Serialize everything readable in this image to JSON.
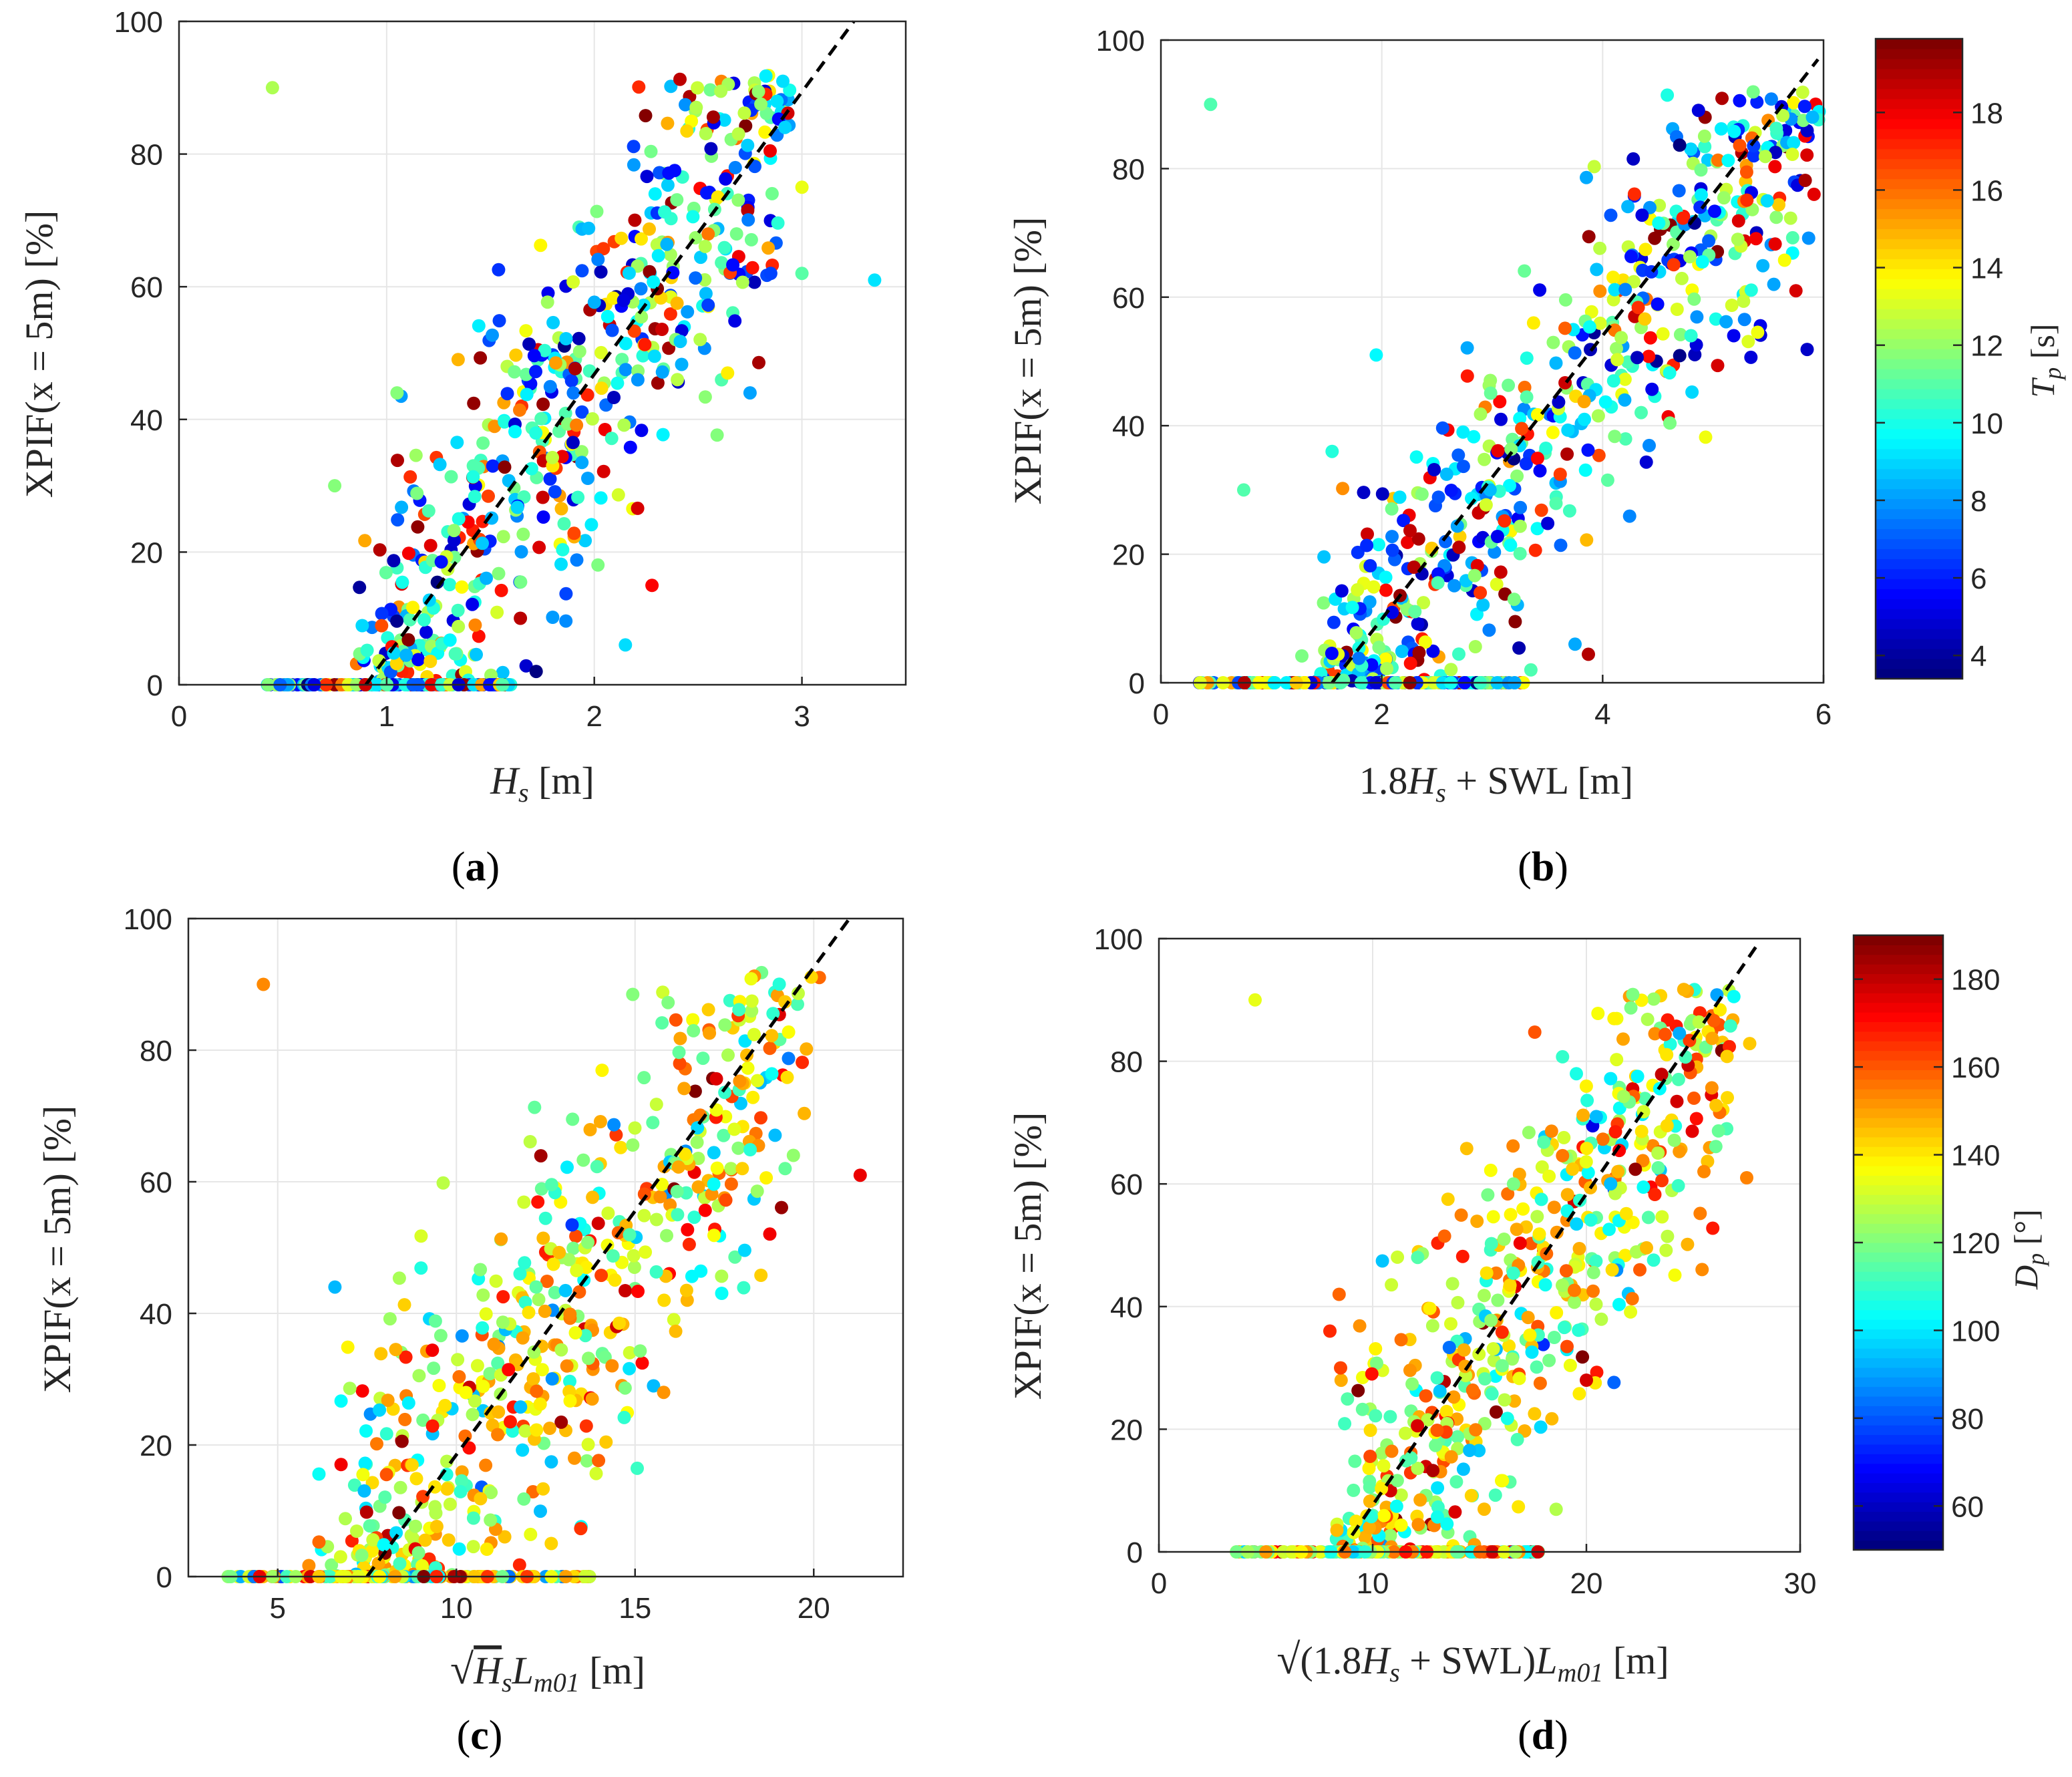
{
  "chart_data": [
    {
      "id": "a",
      "type": "scatter",
      "caption": "(a)",
      "xlabel": "H_s [m]",
      "ylabel": "XPIF(x = 5m) [%]",
      "xlim": [
        0,
        3.5
      ],
      "ylim": [
        0,
        100
      ],
      "xticks": [
        0,
        1,
        2,
        3
      ],
      "yticks": [
        0,
        20,
        40,
        60,
        80,
        100
      ],
      "color_variable": "Tp",
      "grid": true,
      "fit_line": [
        [
          0.9,
          0
        ],
        [
          3.25,
          100
        ]
      ],
      "cluster": {
        "x0": 0.9,
        "x1": 2.9,
        "slope": 42.5,
        "intercept": -38,
        "spread_x": 0.25,
        "spread_y": 13
      },
      "zero_range": [
        0.42,
        1.6
      ],
      "outliers": [
        [
          0.45,
          90
        ],
        [
          3.35,
          61
        ],
        [
          2.75,
          44
        ],
        [
          2.15,
          6
        ],
        [
          3.0,
          75
        ],
        [
          3.0,
          62
        ],
        [
          2.4,
          46
        ],
        [
          2.85,
          62
        ],
        [
          1.72,
          2
        ],
        [
          0.75,
          30
        ],
        [
          1.05,
          44
        ]
      ],
      "n_points": 700
    },
    {
      "id": "b",
      "type": "scatter",
      "caption": "(b)",
      "xlabel": "1.8H_s + SWL [m]",
      "ylabel": "XPIF(x = 5m) [%]",
      "xlim": [
        0,
        6
      ],
      "ylim": [
        0,
        100
      ],
      "xticks": [
        0,
        2,
        4,
        6
      ],
      "yticks": [
        0,
        20,
        40,
        60,
        80,
        100
      ],
      "color_variable": "Tp",
      "grid": true,
      "fit_line": [
        [
          1.55,
          0
        ],
        [
          5.95,
          97
        ]
      ],
      "cluster": {
        "x0": 1.5,
        "x1": 5.9,
        "slope": 20.5,
        "intercept": -33,
        "spread_x": 0.42,
        "spread_y": 12
      },
      "zero_range": [
        0.35,
        3.3
      ],
      "outliers": [
        [
          0.45,
          90
        ],
        [
          5.9,
          88
        ],
        [
          5.75,
          61
        ],
        [
          5.55,
          62
        ],
        [
          1.55,
          36
        ],
        [
          0.75,
          30
        ],
        [
          3.35,
          2
        ],
        [
          3.75,
          6
        ],
        [
          4.2,
          44
        ],
        [
          4.8,
          54
        ],
        [
          1.95,
          51
        ]
      ],
      "n_points": 700
    },
    {
      "id": "c",
      "type": "scatter",
      "caption": "(c)",
      "xlabel": "√(H_s L_m01) [m]",
      "ylabel": "XPIF(x = 5m) [%]",
      "xlim": [
        2.5,
        22.5
      ],
      "ylim": [
        0,
        100
      ],
      "xticks": [
        5,
        10,
        15,
        20
      ],
      "yticks": [
        0,
        20,
        40,
        60,
        80,
        100
      ],
      "color_variable": "Dp",
      "grid": true,
      "fit_line": [
        [
          7.5,
          0
        ],
        [
          21,
          100
        ]
      ],
      "cluster": {
        "x0": 6.8,
        "x1": 19.5,
        "slope": 6.4,
        "intercept": -43,
        "spread_x": 1.5,
        "spread_y": 14
      },
      "zero_range": [
        3.6,
        13.8
      ],
      "outliers": [
        [
          4.6,
          90
        ],
        [
          21.3,
          61
        ],
        [
          15.8,
          28
        ],
        [
          19.2,
          62
        ],
        [
          18.0,
          62
        ],
        [
          13.8,
          27
        ],
        [
          6.6,
          44
        ]
      ],
      "n_points": 700
    },
    {
      "id": "d",
      "type": "scatter",
      "caption": "(d)",
      "xlabel": "√((1.8H_s + SWL)L_m01) [m]",
      "ylabel": "XPIF(x = 5m) [%]",
      "xlim": [
        0,
        30
      ],
      "ylim": [
        0,
        100
      ],
      "xticks": [
        0,
        10,
        20,
        30
      ],
      "yticks": [
        0,
        20,
        40,
        60,
        80,
        100
      ],
      "color_variable": "Dp",
      "grid": true,
      "fit_line": [
        [
          8.5,
          0
        ],
        [
          28,
          99
        ]
      ],
      "cluster": {
        "x0": 8.5,
        "x1": 26.5,
        "slope": 4.7,
        "intercept": -40,
        "spread_x": 2.0,
        "spread_y": 14
      },
      "zero_range": [
        3.6,
        17.8
      ],
      "outliers": [
        [
          4.5,
          90
        ],
        [
          27.5,
          61
        ],
        [
          20.0,
          28
        ],
        [
          25.5,
          62
        ],
        [
          22.5,
          46
        ],
        [
          18.6,
          39
        ],
        [
          8.5,
          30
        ],
        [
          8.0,
          36
        ]
      ],
      "n_points": 700
    }
  ],
  "colorbars": [
    {
      "id": "cb-tp",
      "label": "T_p [s]",
      "variable": "Tp",
      "range": [
        3.4,
        19.9
      ],
      "ticks": [
        4,
        6,
        8,
        10,
        12,
        14,
        16,
        18
      ]
    },
    {
      "id": "cb-dp",
      "label": "D_p [°]",
      "variable": "Dp",
      "range": [
        50,
        190
      ],
      "ticks": [
        60,
        80,
        100,
        120,
        140,
        160,
        180
      ]
    }
  ]
}
